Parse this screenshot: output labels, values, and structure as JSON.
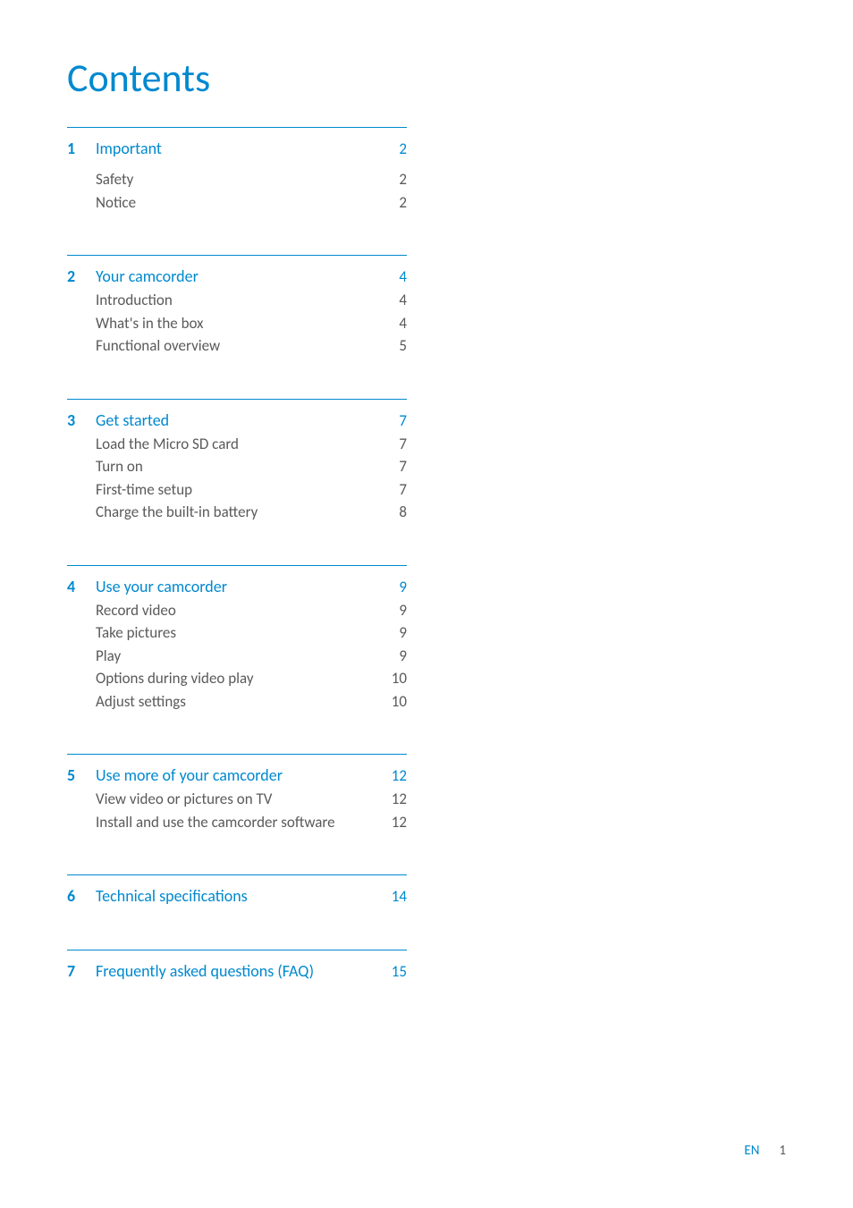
{
  "colors": {
    "accent": "#0089cf",
    "body_text": "#5a5a5a",
    "heading_text": "#0089cf",
    "title_text": "#0089cf",
    "background": "#ffffff",
    "rule": "#0089cf"
  },
  "typography": {
    "title_fontsize": 44,
    "heading_fontsize": 18,
    "sub_fontsize": 17,
    "footer_fontsize": 15
  },
  "title": "Contents",
  "sections": [
    {
      "num": "1",
      "heading": "Important",
      "page": "2",
      "heading_gap": true,
      "items": [
        {
          "label": "Safety",
          "page": "2"
        },
        {
          "label": "Notice",
          "page": "2"
        }
      ]
    },
    {
      "num": "2",
      "heading": "Your camcorder",
      "page": "4",
      "items": [
        {
          "label": "Introduction",
          "page": "4"
        },
        {
          "label": "What's in the box",
          "page": "4"
        },
        {
          "label": "Functional overview",
          "page": "5"
        }
      ]
    },
    {
      "num": "3",
      "heading": "Get started",
      "page": "7",
      "items": [
        {
          "label": "Load the Micro SD card",
          "page": "7"
        },
        {
          "label": "Turn on",
          "page": "7"
        },
        {
          "label": "First-time setup",
          "page": "7"
        },
        {
          "label": "Charge the built-in battery",
          "page": "8"
        }
      ]
    },
    {
      "num": "4",
      "heading": "Use your camcorder",
      "page": "9",
      "items": [
        {
          "label": "Record video",
          "page": "9"
        },
        {
          "label": "Take pictures",
          "page": "9"
        },
        {
          "label": "Play",
          "page": "9"
        },
        {
          "label": "Options during video play",
          "page": "10"
        },
        {
          "label": "Adjust settings",
          "page": "10"
        }
      ]
    },
    {
      "num": "5",
      "heading": "Use more of your camcorder",
      "page": "12",
      "items": [
        {
          "label": "View video or pictures on TV",
          "page": "12"
        },
        {
          "label": "Install and use the camcorder software",
          "page": "12"
        }
      ]
    },
    {
      "num": "6",
      "heading": "Technical specifications",
      "page": "14",
      "items": []
    },
    {
      "num": "7",
      "heading": "Frequently asked questions (FAQ)",
      "page": "15",
      "items": []
    }
  ],
  "footer": {
    "lang": "EN",
    "page_number": "1"
  }
}
